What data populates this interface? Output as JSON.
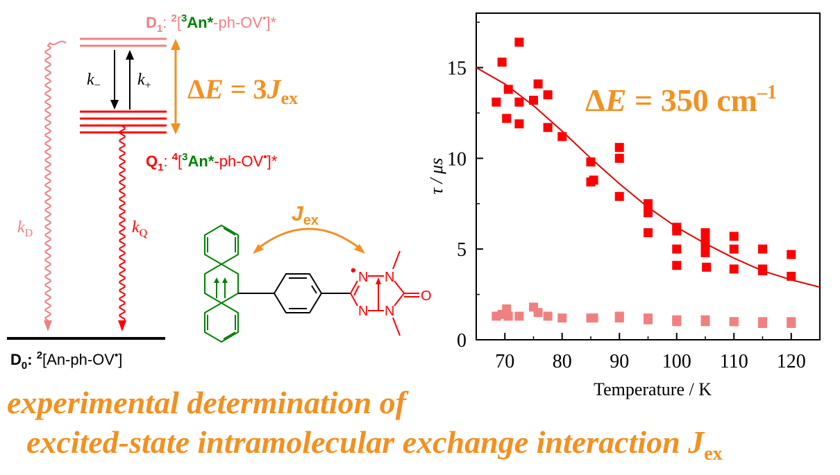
{
  "colors": {
    "doublet": "#f08080",
    "quartet": "#ff0000",
    "anthracene": "#008000",
    "radical": "#ff0000",
    "accent": "#f39020",
    "black": "#000000",
    "fit_line": "#e00000",
    "slow_points": "#ff0000",
    "fast_points": "#f08080"
  },
  "energy_diagram": {
    "d1": {
      "name": "D",
      "sub": "1",
      "colon": ": ",
      "sup_multiplicity": "2",
      "bracket_open": "[",
      "sup_triplet": "3",
      "chromophore": "An*",
      "rest": "-ph-OV",
      "dot": "•",
      "bracket_close": "]*"
    },
    "q1": {
      "name": "Q",
      "sub": "1",
      "colon": ": ",
      "sup_multiplicity": "4",
      "bracket_open": "[",
      "sup_triplet": "3",
      "chromophore": "An*",
      "rest": "-ph-OV",
      "dot": "•",
      "bracket_close": "]*"
    },
    "d0": {
      "name": "D",
      "sub": "0",
      "colon": ": ",
      "sup_multiplicity": "2",
      "text": "[An-ph-OV",
      "dot": "•",
      "close": "]"
    },
    "k_minus": {
      "k": "k",
      "sub": "−"
    },
    "k_plus": {
      "k": "k",
      "sub": "+"
    },
    "kD": {
      "k": "k",
      "sub": "D"
    },
    "kQ": {
      "k": "k",
      "sub": "Q"
    },
    "delta_e": {
      "delta": "Δ",
      "e": "E",
      "eq": " = 3",
      "j": "J",
      "sub": "ex"
    }
  },
  "molecule": {
    "jex": {
      "j": "J",
      "sub": "ex"
    },
    "oxygen": "O",
    "nitrogens": [
      "N",
      "N",
      "N",
      "N"
    ],
    "radical_dot": "•"
  },
  "chart_data": {
    "type": "scatter",
    "xlabel": "Temperature / K",
    "ylabel": "τ / μs",
    "xlim": [
      65,
      125
    ],
    "ylim": [
      0,
      18
    ],
    "xticks": [
      70,
      80,
      90,
      100,
      110,
      120
    ],
    "yticks": [
      0,
      5,
      10,
      15
    ],
    "annotation": {
      "delta": "Δ",
      "e": "E",
      "eq": " = 350 cm",
      "sup": "–1"
    },
    "series": [
      {
        "marker": "square",
        "points": [
          [
            68.5,
            13.1
          ],
          [
            69.5,
            15.3
          ],
          [
            70.3,
            12.2
          ],
          [
            70.6,
            13.8
          ],
          [
            72.5,
            16.4
          ],
          [
            72.5,
            13.1
          ],
          [
            72.5,
            11.9
          ],
          [
            75,
            13.2
          ],
          [
            75.8,
            14.1
          ],
          [
            77.5,
            13.5
          ],
          [
            77.5,
            11.7
          ],
          [
            80,
            11.2
          ],
          [
            85,
            9.8
          ],
          [
            85,
            8.7
          ],
          [
            85.5,
            8.8
          ],
          [
            90,
            10.6
          ],
          [
            90,
            10.0
          ],
          [
            90,
            7.9
          ],
          [
            95,
            7.5
          ],
          [
            95,
            7.2
          ],
          [
            95,
            7.0
          ],
          [
            95,
            5.9
          ],
          [
            100,
            6.2
          ],
          [
            100,
            6.0
          ],
          [
            100,
            5.0
          ],
          [
            100,
            4.1
          ],
          [
            105,
            5.9
          ],
          [
            105,
            5.5
          ],
          [
            105,
            5.1
          ],
          [
            105,
            4.8
          ],
          [
            105.2,
            4.0
          ],
          [
            110,
            5.7
          ],
          [
            110,
            5.0
          ],
          [
            110,
            3.9
          ],
          [
            115,
            5.0
          ],
          [
            115,
            3.9
          ],
          [
            115,
            3.8
          ],
          [
            120,
            4.7
          ],
          [
            120,
            3.5
          ]
        ]
      },
      {
        "marker": "square",
        "points": [
          [
            68.5,
            1.3
          ],
          [
            69.5,
            1.4
          ],
          [
            70.3,
            1.7
          ],
          [
            70.6,
            1.3
          ],
          [
            72.5,
            1.3
          ],
          [
            75,
            1.8
          ],
          [
            75.8,
            1.5
          ],
          [
            77.5,
            1.3
          ],
          [
            80,
            1.2
          ],
          [
            85,
            1.2
          ],
          [
            85.5,
            1.2
          ],
          [
            90,
            1.3
          ],
          [
            90,
            1.2
          ],
          [
            95,
            1.2
          ],
          [
            95,
            1.1
          ],
          [
            100,
            1.1
          ],
          [
            100,
            1.0
          ],
          [
            105,
            1.1
          ],
          [
            105,
            1.0
          ],
          [
            110,
            1.0
          ],
          [
            110,
            1.0
          ],
          [
            115,
            1.0
          ],
          [
            115,
            0.9
          ],
          [
            120,
            1.0
          ],
          [
            120,
            0.9
          ]
        ]
      }
    ],
    "fit_curve": [
      [
        65,
        15.0
      ],
      [
        70,
        14.1
      ],
      [
        75,
        12.9
      ],
      [
        80,
        11.5
      ],
      [
        85,
        10.0
      ],
      [
        90,
        8.6
      ],
      [
        95,
        7.3
      ],
      [
        100,
        6.2
      ],
      [
        105,
        5.3
      ],
      [
        110,
        4.5
      ],
      [
        115,
        3.8
      ],
      [
        120,
        3.3
      ],
      [
        125,
        2.9
      ]
    ]
  },
  "caption": {
    "line1": "experimental determination of",
    "line2": "excited-state intramolecular exchange interaction ",
    "j": "J",
    "sub": "ex"
  }
}
